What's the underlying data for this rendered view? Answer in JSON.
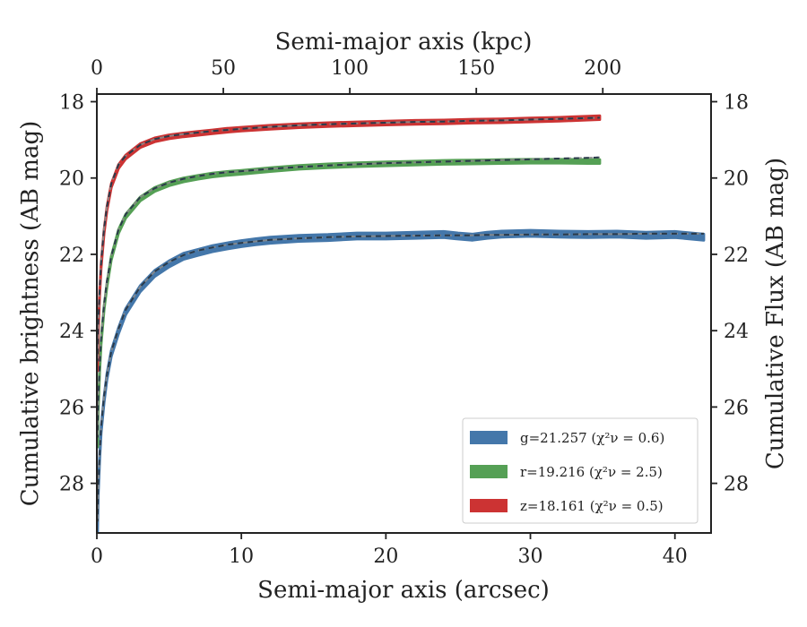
{
  "chart_data": {
    "type": "line",
    "xlabel": "Semi-major axis (arcsec)",
    "ylabel": "Cumulative brightness (AB mag)",
    "x2label": "Semi-major axis (kpc)",
    "y2label": "Cumulative Flux (AB mag)",
    "xlim": [
      0,
      42.5
    ],
    "ylim": [
      29.3,
      17.8
    ],
    "y_inverted": true,
    "x2lim": [
      0,
      242.8
    ],
    "xticks": [
      "0",
      "10",
      "20",
      "30",
      "40"
    ],
    "yticks": [
      "18",
      "20",
      "22",
      "24",
      "26",
      "28"
    ],
    "x2ticks": [
      "0",
      "50",
      "100",
      "150",
      "200"
    ],
    "y2ticks": [
      "18",
      "20",
      "22",
      "24",
      "26",
      "28"
    ],
    "grid": false,
    "legend_position": "lower-right",
    "series": [
      {
        "name": "g=21.257",
        "chi_label": "χ²ν = 0.6",
        "color": "#4477aa",
        "band_width": 0.08,
        "x": [
          0.05,
          0.1,
          0.2,
          0.3,
          0.5,
          0.7,
          1.0,
          1.5,
          2.0,
          3.0,
          4.0,
          5.0,
          6.0,
          7.0,
          8.0,
          9.0,
          10.0,
          11.0,
          12.0,
          14.0,
          16.0,
          18.0,
          20.0,
          22.0,
          24.0,
          25.0,
          26.0,
          27.0,
          28.0,
          30.0,
          32.0,
          34.0,
          36.0,
          38.0,
          40.0,
          42.0
        ],
        "y": [
          29.2,
          28.2,
          27.3,
          26.6,
          25.8,
          25.2,
          24.6,
          24.0,
          23.5,
          22.9,
          22.5,
          22.25,
          22.05,
          21.95,
          21.85,
          21.78,
          21.72,
          21.67,
          21.63,
          21.58,
          21.56,
          21.52,
          21.52,
          21.5,
          21.48,
          21.52,
          21.55,
          21.5,
          21.47,
          21.45,
          21.47,
          21.48,
          21.47,
          21.5,
          21.48,
          21.55
        ],
        "model_y": [
          29.0,
          28.1,
          27.2,
          26.5,
          25.7,
          25.15,
          24.55,
          23.95,
          23.45,
          22.85,
          22.45,
          22.2,
          22.02,
          21.9,
          21.82,
          21.75,
          21.7,
          21.66,
          21.62,
          21.58,
          21.55,
          21.53,
          21.52,
          21.51,
          21.5,
          21.5,
          21.5,
          21.49,
          21.49,
          21.48,
          21.48,
          21.47,
          21.47,
          21.46,
          21.46,
          21.46
        ]
      },
      {
        "name": "r=19.216",
        "chi_label": "χ²ν = 2.5",
        "color": "#55a055",
        "band_width": 0.05,
        "x": [
          0.05,
          0.1,
          0.2,
          0.3,
          0.5,
          0.7,
          1.0,
          1.5,
          2.0,
          3.0,
          4.0,
          5.0,
          6.0,
          7.0,
          8.0,
          9.0,
          10.0,
          12.0,
          14.0,
          16.0,
          18.0,
          20.0,
          22.0,
          24.0,
          26.0,
          28.0,
          30.0,
          32.0,
          34.0,
          34.8
        ],
        "y": [
          27.0,
          26.0,
          25.0,
          24.3,
          23.4,
          22.8,
          22.1,
          21.4,
          21.0,
          20.55,
          20.3,
          20.15,
          20.05,
          19.98,
          19.92,
          19.88,
          19.85,
          19.78,
          19.72,
          19.68,
          19.65,
          19.63,
          19.61,
          19.59,
          19.58,
          19.57,
          19.56,
          19.56,
          19.57,
          19.57
        ],
        "model_y": [
          26.8,
          25.8,
          24.9,
          24.2,
          23.3,
          22.7,
          22.05,
          21.35,
          20.95,
          20.5,
          20.27,
          20.12,
          20.02,
          19.95,
          19.89,
          19.85,
          19.82,
          19.76,
          19.71,
          19.67,
          19.64,
          19.61,
          19.59,
          19.57,
          19.55,
          19.53,
          19.51,
          19.49,
          19.47,
          19.46
        ]
      },
      {
        "name": "z=18.161",
        "chi_label": "χ²ν = 0.5",
        "color": "#cc3333",
        "band_width": 0.05,
        "x": [
          0.05,
          0.1,
          0.2,
          0.3,
          0.5,
          0.7,
          1.0,
          1.5,
          2.0,
          3.0,
          4.0,
          5.0,
          6.0,
          7.0,
          8.0,
          9.0,
          10.0,
          12.0,
          14.0,
          16.0,
          18.0,
          20.0,
          22.0,
          24.0,
          26.0,
          28.0,
          30.0,
          32.0,
          34.0,
          34.8
        ],
        "y": [
          25.0,
          24.0,
          23.0,
          22.3,
          21.4,
          20.8,
          20.2,
          19.7,
          19.45,
          19.15,
          19.0,
          18.92,
          18.87,
          18.83,
          18.79,
          18.75,
          18.72,
          18.67,
          18.63,
          18.6,
          18.58,
          18.56,
          18.54,
          18.53,
          18.51,
          18.5,
          18.48,
          18.46,
          18.43,
          18.42
        ],
        "model_y": [
          24.8,
          23.8,
          22.9,
          22.2,
          21.3,
          20.75,
          20.15,
          19.65,
          19.42,
          19.13,
          18.98,
          18.9,
          18.85,
          18.81,
          18.77,
          18.74,
          18.71,
          18.66,
          18.62,
          18.59,
          18.57,
          18.55,
          18.53,
          18.52,
          18.5,
          18.49,
          18.47,
          18.45,
          18.43,
          18.42
        ]
      }
    ]
  }
}
